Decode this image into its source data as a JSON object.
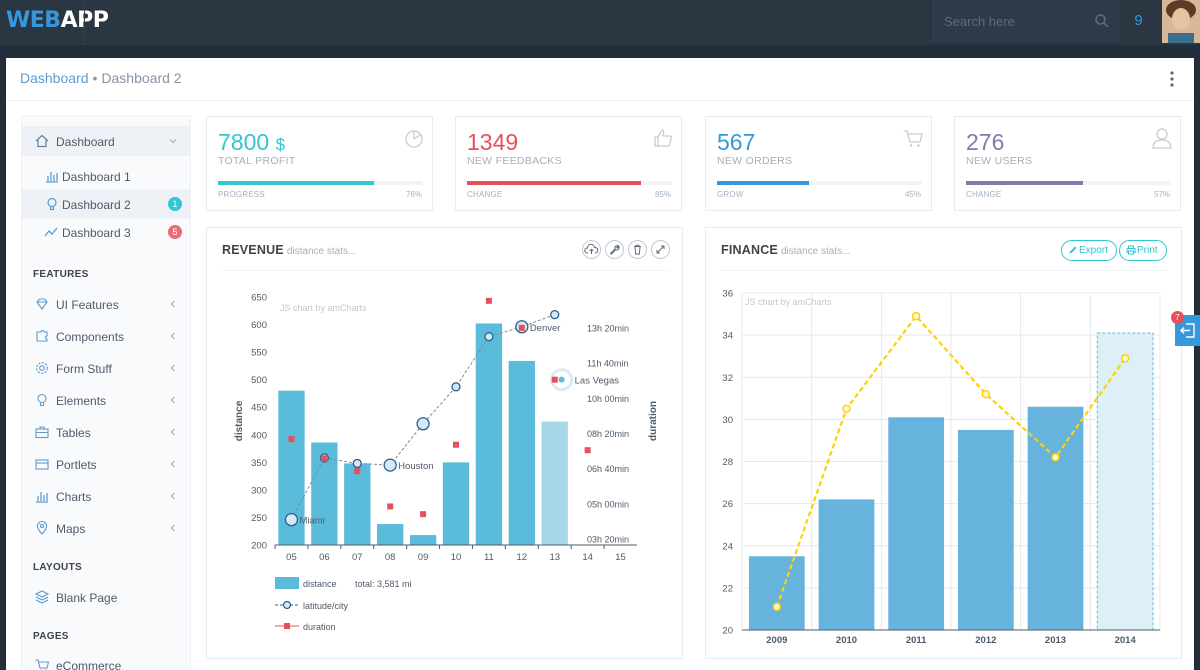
{
  "header": {
    "logo_part1": "WEB",
    "logo_part2": "APP",
    "search_placeholder": "Search here",
    "notification_count": "9",
    "search_icon": "search-icon",
    "avatar": "user-avatar"
  },
  "breadcrumb": {
    "first": "Dashboard",
    "separator": "•",
    "current": "Dashboard 2"
  },
  "sidebar": {
    "dashboard": {
      "label": "Dashboard",
      "icon": "home-icon"
    },
    "sub": [
      {
        "label": "Dashboard 1",
        "icon": "bar-chart-icon",
        "badge": ""
      },
      {
        "label": "Dashboard 2",
        "icon": "bulb-icon",
        "badge": "1",
        "badge_color": "#36c6d3"
      },
      {
        "label": "Dashboard 3",
        "icon": "graph-icon",
        "badge": "5",
        "badge_color": "#ed6b75"
      }
    ],
    "features_heading": "FEATURES",
    "features": [
      {
        "label": "UI Features",
        "icon": "diamond-icon"
      },
      {
        "label": "Components",
        "icon": "puzzle-icon"
      },
      {
        "label": "Form Stuff",
        "icon": "settings-icon"
      },
      {
        "label": "Elements",
        "icon": "bulb-icon"
      },
      {
        "label": "Tables",
        "icon": "briefcase-icon"
      },
      {
        "label": "Portlets",
        "icon": "wallet-icon"
      },
      {
        "label": "Charts",
        "icon": "bar-chart-icon"
      },
      {
        "label": "Maps",
        "icon": "pin-icon"
      }
    ],
    "layouts_heading": "LAYOUTS",
    "layouts": [
      {
        "label": "Blank Page",
        "icon": "layers-icon"
      }
    ],
    "pages_heading": "PAGES",
    "pages": [
      {
        "label": "eCommerce",
        "icon": "basket-icon"
      }
    ]
  },
  "stats": [
    {
      "value": "7800",
      "unit": "$",
      "title": "TOTAL PROFIT",
      "progress_label": "PROGRESS",
      "percent": "76%",
      "progress": 0.76,
      "color": "#32c5d2",
      "icon": "pie-chart-icon"
    },
    {
      "value": "1349",
      "unit": "",
      "title": "NEW FEEDBACKS",
      "progress_label": "CHANGE",
      "percent": "85%",
      "progress": 0.85,
      "color": "#e7505a",
      "icon": "like-icon"
    },
    {
      "value": "567",
      "unit": "",
      "title": "NEW ORDERS",
      "progress_label": "GROW",
      "percent": "45%",
      "progress": 0.45,
      "color": "#3598dc",
      "icon": "basket-icon"
    },
    {
      "value": "276",
      "unit": "",
      "title": "NEW USERS",
      "progress_label": "CHANGE",
      "percent": "57%",
      "progress": 0.57,
      "color": "#8877a9",
      "icon": "user-icon"
    }
  ],
  "revenue": {
    "title": "REVENUE",
    "subtitle": "distance stats...",
    "tools": [
      "cloud-upload-icon",
      "wrench-icon",
      "trash-icon",
      "fullscreen-icon"
    ]
  },
  "finance": {
    "title": "FINANCE",
    "subtitle": "distance stats...",
    "export_label": "Export",
    "print_label": "Print"
  },
  "side_tab_badge": "7",
  "chart_data": [
    {
      "type": "bar",
      "watermark": "JS chart by amCharts",
      "categories": [
        "05",
        "06",
        "07",
        "08",
        "09",
        "10",
        "11",
        "12",
        "13",
        "14",
        "15"
      ],
      "ylabel": "distance",
      "y2label": "duration",
      "ylim": [
        200,
        650
      ],
      "yticks": [
        200,
        250,
        300,
        350,
        400,
        450,
        500,
        550,
        600,
        650
      ],
      "y2ticks": [
        "03h 20min",
        "05h 00min",
        "06h 40min",
        "08h 20min",
        "10h 00min",
        "11h 40min",
        "13h 20min"
      ],
      "series": [
        {
          "name": "distance",
          "type": "bar",
          "values": [
            480,
            386,
            348,
            238,
            218,
            350,
            602,
            534,
            424,
            null,
            null
          ],
          "highlight_index": 8
        },
        {
          "name": "latitude/city",
          "type": "line",
          "values": [
            246,
            358,
            348,
            345,
            420,
            487,
            578,
            596,
            618,
            null,
            null
          ],
          "point_labels": [
            "Miami",
            "",
            "",
            "Houston",
            "",
            "",
            "",
            "Denver",
            "",
            "Las Vegas",
            ""
          ]
        },
        {
          "name": "duration",
          "type": "scatter",
          "values": [
            392,
            357,
            334,
            270,
            256,
            382,
            643,
            594,
            500,
            372,
            null
          ]
        }
      ],
      "legend": [
        {
          "label": "distance",
          "extra": "total: 3,581 mi"
        },
        {
          "label": "latitude/city",
          "extra": ""
        },
        {
          "label": "duration",
          "extra": ""
        }
      ],
      "legend_position": "bottom-left",
      "colors": {
        "bar": "#5bbbdb",
        "bar_highlight": "#a6d8ea",
        "line": "#7f8893",
        "marker": "#3598dc",
        "square": "#e7505a"
      }
    },
    {
      "type": "bar",
      "watermark": "JS chart by amCharts",
      "categories": [
        "2009",
        "2010",
        "2011",
        "2012",
        "2013",
        "2014"
      ],
      "ylim": [
        20,
        36
      ],
      "yticks": [
        20,
        22,
        24,
        26,
        28,
        30,
        32,
        34,
        36
      ],
      "series": [
        {
          "name": "bars",
          "type": "bar",
          "values": [
            23.5,
            26.2,
            30.1,
            29.5,
            30.6,
            34.1
          ],
          "dashed_last": true
        },
        {
          "name": "line",
          "type": "line",
          "values": [
            21.1,
            30.5,
            34.9,
            31.2,
            28.2,
            32.9
          ]
        }
      ],
      "grid": true,
      "colors": {
        "bar": "#66b3dd",
        "bar_last": "#ddf0f8",
        "line": "#fcd209"
      }
    }
  ]
}
